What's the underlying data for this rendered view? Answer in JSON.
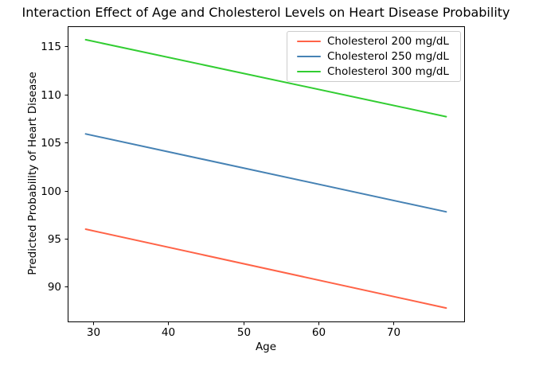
{
  "figure": {
    "background": "#ffffff",
    "text_color": "#000000",
    "spine_color": "#000000"
  },
  "chart_data": {
    "type": "line",
    "title": "Interaction Effect of Age and Cholesterol Levels on Heart Disease Probability",
    "xlabel": "Age",
    "ylabel": "Predicted Probability of Heart Disease",
    "x": [
      29,
      77
    ],
    "series": [
      {
        "name": "Cholesterol 200 mg/dL",
        "color": "#ff6347",
        "values": [
          96.0,
          87.8
        ]
      },
      {
        "name": "Cholesterol 250 mg/dL",
        "color": "#4682b4",
        "values": [
          105.9,
          97.8
        ]
      },
      {
        "name": "Cholesterol 300 mg/dL",
        "color": "#32cd32",
        "values": [
          115.7,
          107.7
        ]
      }
    ],
    "xlim": [
      26.6,
      79.4
    ],
    "ylim": [
      86.4,
      117.1
    ],
    "xticks": [
      30,
      40,
      50,
      60,
      70
    ],
    "yticks": [
      90,
      95,
      100,
      105,
      110,
      115
    ],
    "grid": false,
    "legend": {
      "position": "upper right",
      "border_color": "#cccccc",
      "background": "#ffffff"
    }
  }
}
